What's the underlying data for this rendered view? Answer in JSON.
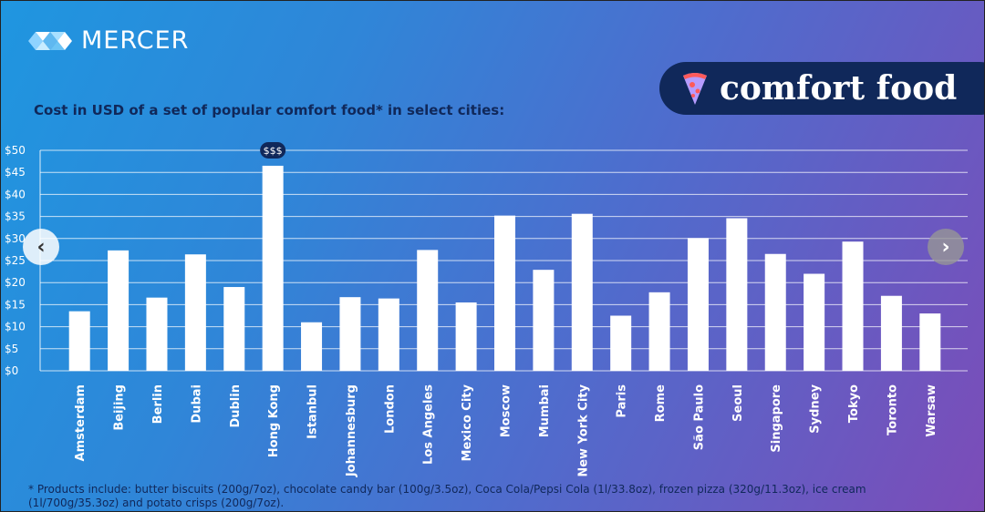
{
  "brand": {
    "name": "MERCER"
  },
  "badge": {
    "label": "comfort food"
  },
  "header": {
    "subtitle": "Cost in USD of a set of popular comfort food* in select cities:"
  },
  "nav": {
    "prev": "‹",
    "next": "›"
  },
  "footnote": "* Products include: butter biscuits (200g/7oz), chocolate candy bar (100g/3.5oz), Coca Cola/Pepsi Cola (1l/33.8oz), frozen pizza (320g/11.3oz), ice cream (1l/700g/35.3oz) and potato crisps (200g/7oz).",
  "chart_data": {
    "type": "bar",
    "title": "Cost in USD of a set of popular comfort food* in select cities:",
    "ylabel": "",
    "xlabel": "",
    "ylim": [
      0,
      50
    ],
    "yticks": [
      "$0",
      "$5",
      "$10",
      "$15",
      "$20",
      "$25",
      "$30",
      "$35",
      "$40",
      "$45",
      "$50"
    ],
    "grid": true,
    "categories": [
      "Amsterdam",
      "Beijing",
      "Berlin",
      "Dubai",
      "Dublin",
      "Hong Kong",
      "Istanbul",
      "Johannesburg",
      "London",
      "Los Angeles",
      "Mexico City",
      "Moscow",
      "Mumbai",
      "New York City",
      "Paris",
      "Rome",
      "São Paulo",
      "Seoul",
      "Singapore",
      "Sydney",
      "Tokyo",
      "Toronto",
      "Warsaw"
    ],
    "values": [
      13.5,
      27.3,
      16.6,
      26.4,
      19,
      46.5,
      11,
      16.7,
      16.4,
      27.4,
      15.5,
      35.2,
      22.9,
      35.6,
      12.5,
      17.8,
      30.1,
      34.6,
      26.5,
      22,
      29.3,
      17,
      13
    ],
    "annotation": {
      "category": "Hong Kong",
      "label": "$$$"
    },
    "bar_color": "#ffffff"
  }
}
